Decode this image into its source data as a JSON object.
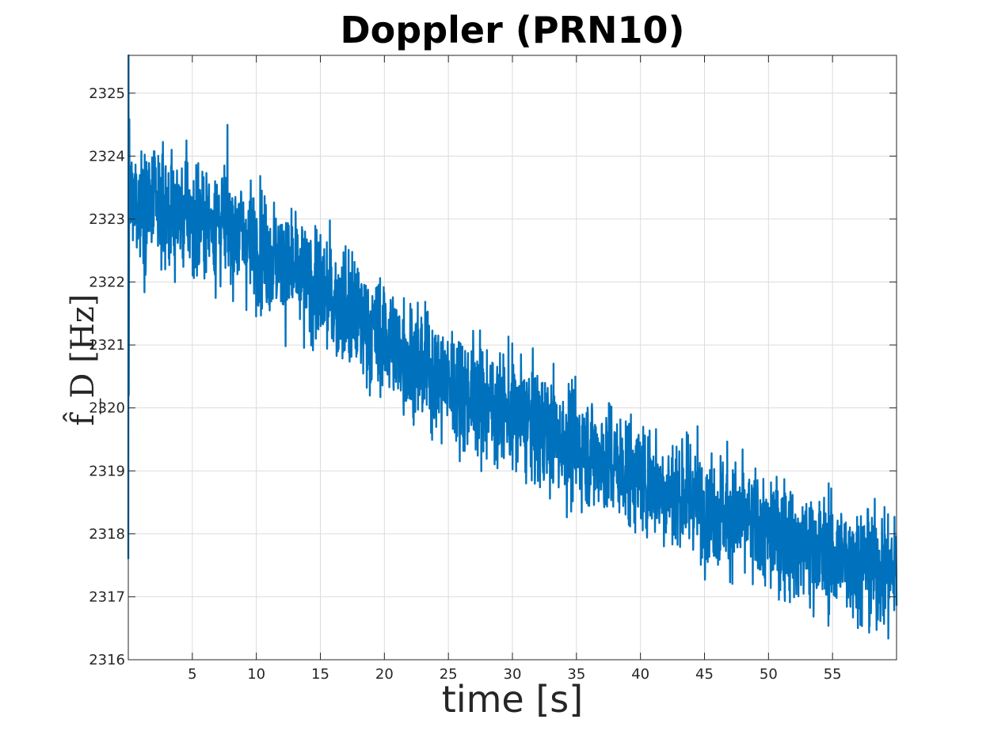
{
  "chart_data": {
    "type": "line",
    "title": "Doppler (PRN10)",
    "xlabel": "time [s]",
    "ylabel": "f̂_D [Hz]",
    "xlim": [
      0,
      60
    ],
    "ylim": [
      2316,
      2325.6
    ],
    "x_ticks": [
      5,
      10,
      15,
      20,
      25,
      30,
      35,
      40,
      45,
      50,
      55
    ],
    "y_ticks": [
      2316,
      2317,
      2318,
      2319,
      2320,
      2321,
      2322,
      2323,
      2324,
      2325
    ],
    "grid": true,
    "line_color": "#0072BD",
    "series": [
      {
        "x": [
          0,
          2,
          4,
          6,
          8,
          10,
          12,
          14,
          16,
          18,
          20,
          22,
          24,
          26,
          28,
          30,
          32,
          34,
          36,
          38,
          40,
          42,
          44,
          46,
          48,
          50,
          52,
          54,
          56,
          58,
          60
        ],
        "mean": [
          2323.3,
          2323.2,
          2323.1,
          2323.0,
          2322.9,
          2322.6,
          2322.3,
          2322.0,
          2321.7,
          2321.4,
          2321.1,
          2320.8,
          2320.5,
          2320.3,
          2320.1,
          2319.9,
          2319.7,
          2319.5,
          2319.3,
          2319.1,
          2318.9,
          2318.7,
          2318.6,
          2318.4,
          2318.2,
          2318.0,
          2317.9,
          2317.7,
          2317.6,
          2317.5,
          2317.4
        ],
        "noise_amplitude": 1.0,
        "point_count": 3000
      }
    ]
  }
}
